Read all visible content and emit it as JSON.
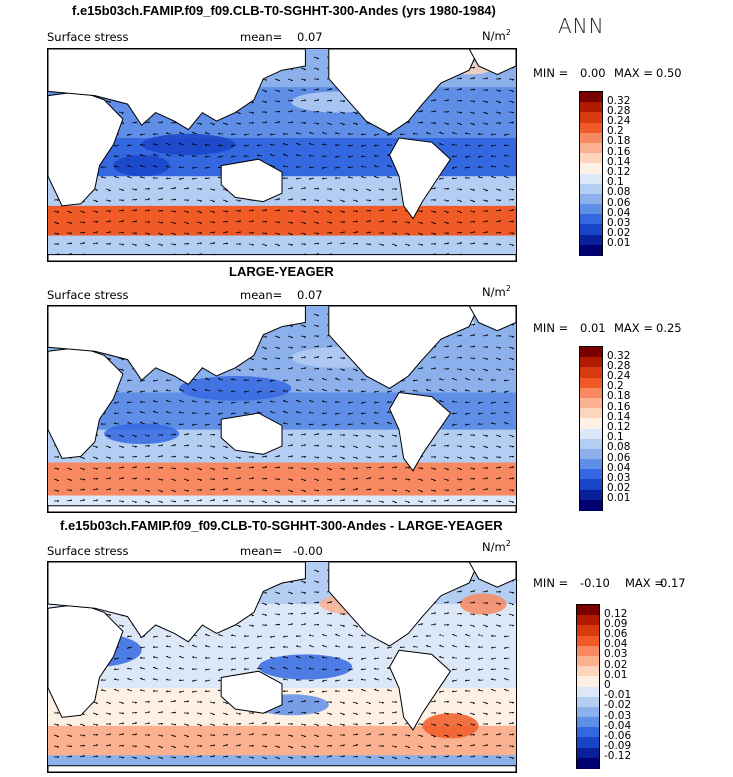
{
  "season": "ANN",
  "chart_data": [
    {
      "type": "heatmap",
      "title": "f.e15b03ch.FAMIP.f09_f09.CLB-T0-SGHHT-300-Andes (yrs 1980-1984)",
      "variable": "Surface stress",
      "mean_label": "mean=",
      "mean": "0.07",
      "units": "N/m",
      "units_sup": "2",
      "min_label": "MIN =",
      "min": "0.00",
      "max_label": "MAX =",
      "max": "0.50",
      "colorbar": [
        "0.32",
        "0.28",
        "0.24",
        "0.2",
        "0.18",
        "0.16",
        "0.14",
        "0.12",
        "0.1",
        "0.08",
        "0.06",
        "0.04",
        "0.03",
        "0.02",
        "0.01"
      ],
      "colors": [
        "#7a0000",
        "#b01a00",
        "#d83a10",
        "#f05a26",
        "#f88860",
        "#fbb090",
        "#fdd4bc",
        "#fdf0e4",
        "#dce8f8",
        "#b4cdf2",
        "#8cb0ec",
        "#5e8ee6",
        "#3468e0",
        "#1a44c8",
        "#0a209a",
        "#000070"
      ]
    },
    {
      "type": "heatmap",
      "title": "LARGE-YEAGER",
      "variable": "Surface stress",
      "mean_label": "mean=",
      "mean": "0.07",
      "units": "N/m",
      "units_sup": "2",
      "min_label": "MIN =",
      "min": "0.01",
      "max_label": "MAX =",
      "max": "0.25",
      "colorbar": [
        "0.32",
        "0.28",
        "0.24",
        "0.2",
        "0.18",
        "0.16",
        "0.14",
        "0.12",
        "0.1",
        "0.08",
        "0.06",
        "0.04",
        "0.03",
        "0.02",
        "0.01"
      ],
      "colors": [
        "#7a0000",
        "#b01a00",
        "#d83a10",
        "#f05a26",
        "#f88860",
        "#fbb090",
        "#fdd4bc",
        "#fdf0e4",
        "#dce8f8",
        "#b4cdf2",
        "#8cb0ec",
        "#5e8ee6",
        "#3468e0",
        "#1a44c8",
        "#0a209a",
        "#000070"
      ]
    },
    {
      "type": "heatmap",
      "title": "f.e15b03ch.FAMIP.f09_f09.CLB-T0-SGHHT-300-Andes - LARGE-YEAGER",
      "variable": "Surface stress",
      "mean_label": "mean=",
      "mean": "-0.00",
      "units": "N/m",
      "units_sup": "2",
      "min_label": "MIN =",
      "min": "-0.10",
      "max_label": "MAX =",
      "max": "0.17",
      "colorbar": [
        "0.12",
        "0.09",
        "0.06",
        "0.04",
        "0.03",
        "0.02",
        "0.01",
        "0",
        "-0.01",
        "-0.02",
        "-0.03",
        "-0.04",
        "-0.06",
        "-0.09",
        "-0.12"
      ],
      "colors": [
        "#7a0000",
        "#b01a00",
        "#d83a10",
        "#f05a26",
        "#f88860",
        "#fbb090",
        "#fdd4bc",
        "#fdf0e4",
        "#dce8f8",
        "#b4cdf2",
        "#8cb0ec",
        "#5e8ee6",
        "#3468e0",
        "#1a44c8",
        "#0a209a",
        "#000070"
      ]
    }
  ]
}
